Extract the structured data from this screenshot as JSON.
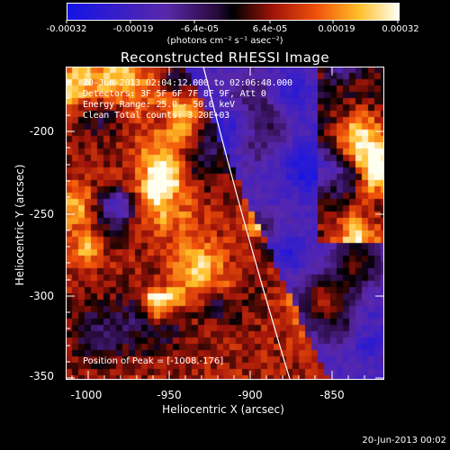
{
  "colorbar": {
    "ticks": [
      "-0.00032",
      "-0.00019",
      "-6.4e-05",
      "6.4e-05",
      "0.00019",
      "0.00032"
    ],
    "units": "(photons cm⁻² s⁻¹ asec⁻²)"
  },
  "plot": {
    "title": "Reconstructed RHESSI Image",
    "annotations": [
      "20-Jun-2013 02:04:12.000 to 02:06:48.000",
      "Detectors: 3F 5F 6F 7F 8F 9F, Att 0",
      "Energy Range: 25.0 - 50.0 keV",
      "Clean    Total counts: 3.20E+03"
    ],
    "peak_label": "Position of Peak = [-1008,-176]",
    "xlabel": "Heliocentric X (arcsec)",
    "ylabel": "Heliocentric Y (arcsec)",
    "xticks": [
      "-1000",
      "-950",
      "-900",
      "-850"
    ],
    "yticks": [
      "-200",
      "-250",
      "-300",
      "-350"
    ]
  },
  "footer": {
    "timestamp": "20-Jun-2013 00:02"
  },
  "colors": {
    "background": "#000000",
    "text": "#ffffff",
    "limb": "#ffffff"
  }
}
